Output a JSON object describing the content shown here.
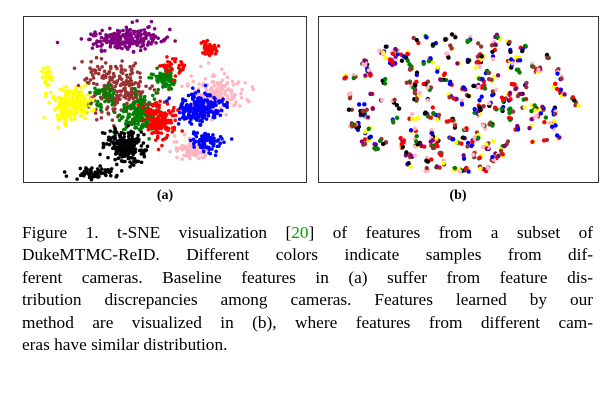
{
  "figure": {
    "panels": [
      {
        "id": "a",
        "label": "(a)"
      },
      {
        "id": "b",
        "label": "(b)"
      }
    ],
    "camera_colors": [
      "#800080",
      "#ffff00",
      "#993333",
      "#008000",
      "#ff0000",
      "#0000ff",
      "#ffb6c1",
      "#000000"
    ],
    "caption": {
      "line1_pre": "Figure 1. t-SNE visualization [",
      "ref": "20",
      "line1_post": "] of features from a subset of",
      "line2": "DukeMTMC-ReID. Different colors indicate samples from dif-",
      "line3": "ferent cameras. Baseline features in (a) suffer from feature dis-",
      "line4": "tribution discrepancies among cameras. Features learned by our",
      "line5": "method are visualized in (b), where features from different cam-",
      "line6": "eras have similar distribution."
    },
    "ref_color": "#00a000"
  },
  "chart_data": [
    {
      "type": "scatter",
      "panel": "(a)",
      "grid": false,
      "axes": "hidden",
      "clustering": "separated by camera color"
    },
    {
      "type": "scatter",
      "panel": "(b)",
      "grid": false,
      "axes": "hidden",
      "clustering": "mixed camera colors"
    }
  ]
}
